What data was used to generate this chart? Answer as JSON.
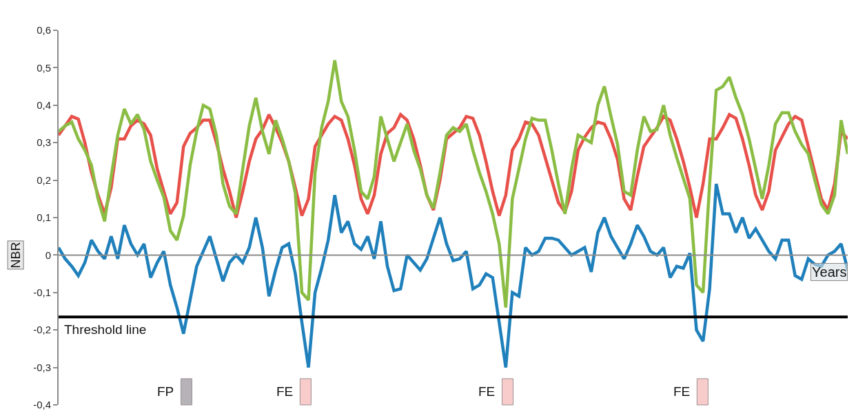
{
  "chart_data": {
    "type": "line",
    "ylabel": "NBR",
    "xlabel": "Years",
    "categories": [
      null,
      null,
      null,
      null,
      null,
      null,
      null,
      null,
      null,
      null,
      null,
      null,
      null,
      null,
      null,
      null,
      null,
      null,
      null,
      null,
      null,
      null,
      null,
      null,
      null,
      null,
      null,
      null,
      null,
      null,
      null,
      null,
      null,
      null,
      null,
      null,
      null,
      null,
      null,
      null,
      null,
      null,
      null,
      null,
      null,
      null,
      null,
      null,
      null,
      null,
      null,
      null,
      null,
      null,
      null,
      null,
      null,
      null,
      null,
      null,
      null,
      null,
      null,
      null,
      null,
      null,
      null,
      null,
      null,
      null,
      null,
      null,
      null,
      null,
      null,
      null,
      null,
      null,
      null,
      null,
      null,
      null,
      null,
      null,
      null,
      null,
      null,
      null,
      null,
      null,
      null,
      null,
      null,
      null,
      null,
      null,
      null,
      null,
      null,
      null,
      null,
      null,
      null,
      null,
      null,
      null,
      null,
      null,
      null,
      null,
      null,
      null,
      null,
      null,
      null,
      null,
      null,
      null,
      null,
      null,
      null
    ],
    "ylim": [
      -0.4,
      0.6
    ],
    "yticks": [
      {
        "value": -0.4,
        "label": "-0,4"
      },
      {
        "value": -0.3,
        "label": "-0,3"
      },
      {
        "value": -0.2,
        "label": "-0,2"
      },
      {
        "value": -0.1,
        "label": "-0,1"
      },
      {
        "value": 0,
        "label": "0"
      },
      {
        "value": 0.1,
        "label": "0,1"
      },
      {
        "value": 0.2,
        "label": "0,2"
      },
      {
        "value": 0.3,
        "label": "0,3"
      },
      {
        "value": 0.4,
        "label": "0,4"
      },
      {
        "value": 0.5,
        "label": "0,5"
      },
      {
        "value": 0.6,
        "label": "0,6"
      }
    ],
    "tick_labels": "y",
    "grid": false,
    "marker": "none",
    "line_style": "solid",
    "series": [
      {
        "color": "#e8504a",
        "values": [
          0.32,
          0.345,
          0.37,
          0.363,
          0.3,
          0.22,
          0.16,
          0.11,
          0.18,
          0.31,
          0.31,
          0.345,
          0.36,
          0.35,
          0.32,
          0.23,
          0.17,
          0.11,
          0.14,
          0.29,
          0.325,
          0.34,
          0.36,
          0.36,
          0.3,
          0.23,
          0.17,
          0.1,
          0.17,
          0.25,
          0.31,
          0.335,
          0.375,
          0.34,
          0.3,
          0.25,
          0.18,
          0.105,
          0.15,
          0.29,
          0.32,
          0.35,
          0.37,
          0.36,
          0.31,
          0.24,
          0.15,
          0.11,
          0.16,
          0.27,
          0.325,
          0.34,
          0.375,
          0.36,
          0.31,
          0.24,
          0.16,
          0.12,
          0.2,
          0.31,
          0.325,
          0.34,
          0.37,
          0.365,
          0.32,
          0.25,
          0.17,
          0.105,
          0.16,
          0.28,
          0.31,
          0.355,
          0.35,
          0.32,
          0.26,
          0.2,
          0.14,
          0.115,
          0.17,
          0.28,
          0.315,
          0.34,
          0.355,
          0.35,
          0.31,
          0.255,
          0.15,
          0.12,
          0.21,
          0.29,
          0.315,
          0.34,
          0.37,
          0.36,
          0.31,
          0.25,
          0.18,
          0.1,
          0.19,
          0.31,
          0.31,
          0.34,
          0.375,
          0.365,
          0.31,
          0.24,
          0.16,
          0.12,
          0.17,
          0.28,
          0.315,
          0.35,
          0.37,
          0.36,
          0.29,
          0.22,
          0.15,
          0.12,
          0.19,
          0.33,
          0.31
        ]
      },
      {
        "color": "#8bbd45",
        "values": [
          0.33,
          0.345,
          0.355,
          0.31,
          0.28,
          0.24,
          0.15,
          0.09,
          0.21,
          0.32,
          0.39,
          0.35,
          0.375,
          0.335,
          0.25,
          0.2,
          0.155,
          0.065,
          0.04,
          0.105,
          0.24,
          0.33,
          0.4,
          0.39,
          0.32,
          0.19,
          0.13,
          0.11,
          0.23,
          0.345,
          0.42,
          0.33,
          0.27,
          0.36,
          0.31,
          0.25,
          0.165,
          -0.1,
          -0.12,
          0.22,
          0.34,
          0.41,
          0.52,
          0.41,
          0.37,
          0.28,
          0.17,
          0.15,
          0.21,
          0.37,
          0.31,
          0.25,
          0.3,
          0.35,
          0.28,
          0.23,
          0.16,
          0.125,
          0.22,
          0.32,
          0.34,
          0.33,
          0.35,
          0.28,
          0.22,
          0.17,
          0.11,
          0.03,
          -0.14,
          0.15,
          0.23,
          0.31,
          0.365,
          0.36,
          0.36,
          0.28,
          0.19,
          0.11,
          0.23,
          0.32,
          0.31,
          0.3,
          0.4,
          0.45,
          0.37,
          0.295,
          0.17,
          0.16,
          0.28,
          0.37,
          0.33,
          0.335,
          0.4,
          0.32,
          0.26,
          0.205,
          0.15,
          -0.08,
          -0.1,
          0.19,
          0.44,
          0.45,
          0.475,
          0.42,
          0.375,
          0.31,
          0.23,
          0.15,
          0.24,
          0.35,
          0.38,
          0.38,
          0.33,
          0.295,
          0.27,
          0.2,
          0.135,
          0.11,
          0.16,
          0.36,
          0.27
        ]
      },
      {
        "color": "#1f80bb",
        "values": [
          0.02,
          -0.01,
          -0.03,
          -0.055,
          -0.02,
          0.04,
          0.01,
          -0.01,
          0.05,
          -0.01,
          0.08,
          0.03,
          0,
          0.03,
          -0.06,
          -0.02,
          0.01,
          -0.08,
          -0.14,
          -0.21,
          -0.12,
          -0.03,
          0.01,
          0.05,
          -0.01,
          -0.07,
          -0.02,
          0,
          -0.02,
          0.02,
          0.1,
          0.02,
          -0.11,
          -0.04,
          0.02,
          0.03,
          -0.05,
          -0.18,
          -0.3,
          -0.1,
          -0.035,
          0.04,
          0.16,
          0.06,
          0.09,
          0.03,
          0.015,
          0.05,
          -0.01,
          0.09,
          -0.03,
          -0.095,
          -0.09,
          0,
          -0.02,
          -0.04,
          -0.01,
          0.045,
          0.1,
          0.03,
          -0.015,
          -0.01,
          0.01,
          -0.09,
          -0.08,
          -0.05,
          -0.06,
          -0.18,
          -0.3,
          -0.1,
          -0.11,
          0.02,
          0,
          0.01,
          0.045,
          0.045,
          0.04,
          0.02,
          0,
          0.01,
          0.02,
          -0.045,
          0.06,
          0.1,
          0.05,
          0.02,
          -0.01,
          0.03,
          0.08,
          0.05,
          0.01,
          0,
          0.02,
          -0.06,
          -0.03,
          -0.035,
          0.005,
          -0.2,
          -0.23,
          -0.09,
          0.19,
          0.11,
          0.11,
          0.06,
          0.1,
          0.045,
          0.07,
          0.04,
          0.01,
          -0.01,
          0.04,
          0.04,
          -0.055,
          -0.065,
          -0.01,
          -0.025,
          -0.03,
          0,
          0.01,
          0.03,
          -0.04
        ]
      }
    ],
    "ref_lines": [
      {
        "axis": "y",
        "value": -0.165,
        "label": "Threshold line",
        "color": "#000000",
        "line_style": "solid"
      },
      {
        "axis": "y",
        "value": 0,
        "color": "#8c8c8c",
        "line_style": "solid"
      }
    ],
    "annotations": [
      "FP",
      "FE",
      "FE",
      "FE"
    ]
  }
}
